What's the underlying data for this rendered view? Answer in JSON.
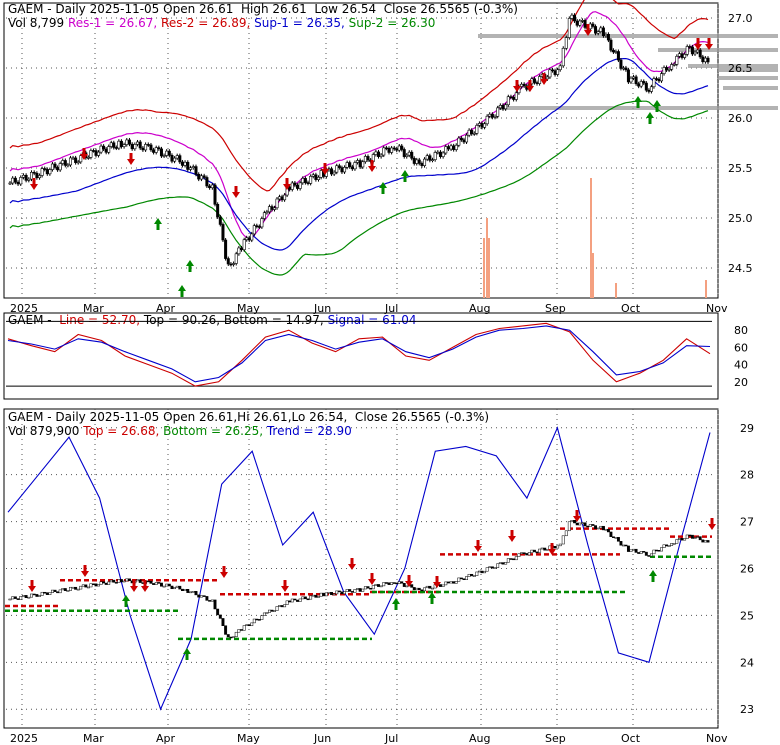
{
  "chart_data": [
    {
      "type": "candlestick",
      "panel": "price",
      "header": {
        "line1": {
          "symbol_text": "GAEM - Daily 2025-11-05 Open 26.61  High 26.61  Low 26.54  Close 26.5565 (-0.3%)"
        },
        "line2": {
          "vol": "Vol 8,799",
          "res1": "Res-1 = 26.67,",
          "res2": "Res-2 = 26.89,",
          "sup1": "Sup-1 = 26.35,",
          "sup2": "Sup-2 = 26.30"
        }
      },
      "x_tick_labels": [
        "2025",
        "Mar",
        "Apr",
        "May",
        "Jun",
        "Jul",
        "Aug",
        "Sep",
        "Oct",
        "Nov"
      ],
      "y_tick_labels": [
        "27.0",
        "26.5",
        "26.0",
        "25.5",
        "25.0",
        "24.5"
      ],
      "ylim": [
        24.2,
        27.15
      ],
      "grid": true,
      "close_series": [
        {
          "date": "2025-01-02",
          "close": 25.35
        },
        {
          "date": "2025-01-15",
          "close": 25.45
        },
        {
          "date": "2025-02-01",
          "close": 25.6
        },
        {
          "date": "2025-02-20",
          "close": 25.75
        },
        {
          "date": "2025-03-05",
          "close": 25.7
        },
        {
          "date": "2025-03-20",
          "close": 25.55
        },
        {
          "date": "2025-04-01",
          "close": 25.3
        },
        {
          "date": "2025-04-08",
          "close": 24.5
        },
        {
          "date": "2025-04-15",
          "close": 24.75
        },
        {
          "date": "2025-04-25",
          "close": 25.05
        },
        {
          "date": "2025-05-05",
          "close": 25.3
        },
        {
          "date": "2025-05-20",
          "close": 25.45
        },
        {
          "date": "2025-06-05",
          "close": 25.55
        },
        {
          "date": "2025-06-20",
          "close": 25.72
        },
        {
          "date": "2025-07-01",
          "close": 25.55
        },
        {
          "date": "2025-07-15",
          "close": 25.7
        },
        {
          "date": "2025-08-01",
          "close": 26.0
        },
        {
          "date": "2025-08-15",
          "close": 26.3
        },
        {
          "date": "2025-09-01",
          "close": 26.5
        },
        {
          "date": "2025-09-05",
          "close": 27.0
        },
        {
          "date": "2025-09-20",
          "close": 26.85
        },
        {
          "date": "2025-10-01",
          "close": 26.4
        },
        {
          "date": "2025-10-10",
          "close": 26.3
        },
        {
          "date": "2025-10-20",
          "close": 26.55
        },
        {
          "date": "2025-10-28",
          "close": 26.7
        },
        {
          "date": "2025-11-05",
          "close": 26.56
        }
      ]
    },
    {
      "type": "line",
      "panel": "oscillator",
      "header": {
        "symbol": "GAEM - ",
        "line": "Line = 52.70,",
        "top": "Top = 90.26,",
        "bottom": "Bottom = 14.97,",
        "signal": "Signal = 61.04"
      },
      "y_tick_labels": [
        "80",
        "60",
        "40",
        "20"
      ],
      "ylim": [
        0,
        100
      ],
      "series": [
        {
          "values": [
            70,
            62,
            55,
            75,
            68,
            50,
            40,
            30,
            15,
            20,
            45,
            72,
            80,
            65,
            55,
            70,
            72,
            50,
            45,
            60,
            75,
            82,
            85,
            88,
            78,
            45,
            20,
            30,
            45,
            70,
            52.7
          ]
        },
        {
          "values": [
            68,
            64,
            58,
            70,
            66,
            55,
            45,
            35,
            20,
            25,
            42,
            68,
            75,
            68,
            58,
            66,
            70,
            55,
            48,
            58,
            72,
            80,
            82,
            85,
            80,
            55,
            28,
            32,
            42,
            62,
            61.04
          ]
        }
      ]
    },
    {
      "type": "candlestick",
      "panel": "trend",
      "header": {
        "line1": {
          "symbol_text": "GAEM - Daily 2025-11-05 Open 26.61,Hi 26.61,Lo 26.54,  Close 26.5565 (-0.3%)"
        },
        "line2": {
          "vol": "Vol 879,900",
          "top": "Top = 26.68,",
          "bottom": "Bottom = 26.25,",
          "trend": "Trend = 28.90"
        }
      },
      "x_tick_labels": [
        "2025",
        "Mar",
        "Apr",
        "May",
        "Jun",
        "Jul",
        "Aug",
        "Sep",
        "Oct",
        "Nov"
      ],
      "y_tick_labels": [
        "29",
        "28",
        "27",
        "26",
        "25",
        "24",
        "23"
      ],
      "ylim": [
        22.6,
        29.4
      ],
      "trend_series": [
        27.2,
        28.0,
        28.8,
        27.5,
        25.0,
        23.0,
        24.5,
        27.8,
        28.5,
        26.5,
        27.2,
        25.5,
        24.6,
        26.0,
        28.5,
        28.6,
        28.4,
        27.5,
        29.0,
        26.5,
        24.2,
        24.0,
        26.5,
        28.9
      ]
    }
  ]
}
